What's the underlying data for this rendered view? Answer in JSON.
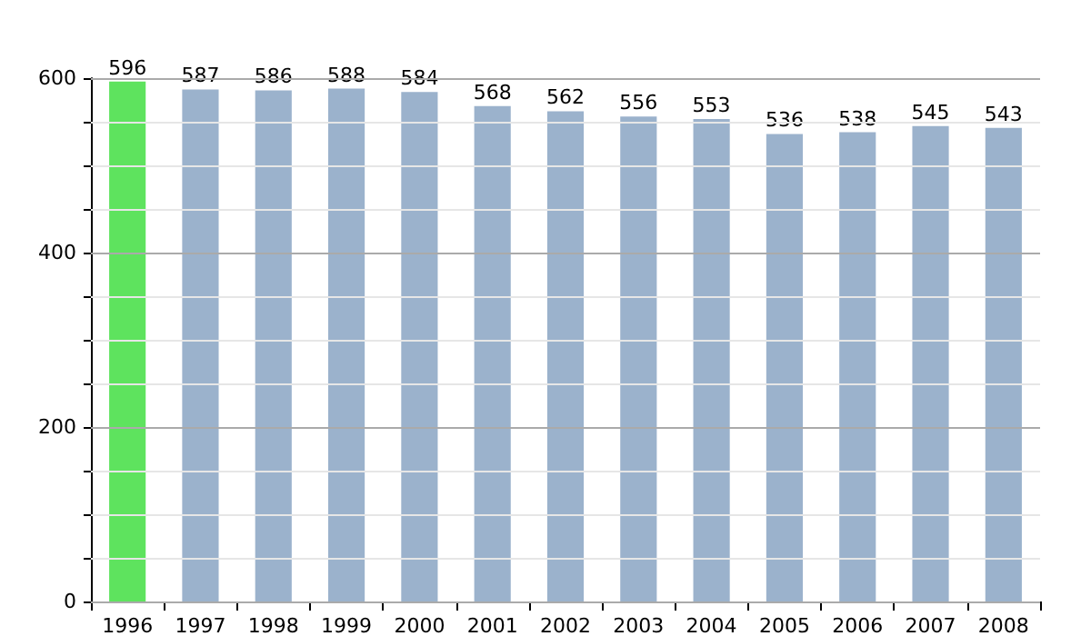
{
  "chart_data": {
    "type": "bar",
    "categories": [
      "1996",
      "1997",
      "1998",
      "1999",
      "2000",
      "2001",
      "2002",
      "2003",
      "2004",
      "2005",
      "2006",
      "2007",
      "2008"
    ],
    "values": [
      596,
      587,
      586,
      588,
      584,
      568,
      562,
      556,
      553,
      536,
      538,
      545,
      543
    ],
    "colors": [
      "#5ee35e",
      "#9bb2cc",
      "#9bb2cc",
      "#9bb2cc",
      "#9bb2cc",
      "#9bb2cc",
      "#9bb2cc",
      "#9bb2cc",
      "#9bb2cc",
      "#9bb2cc",
      "#9bb2cc",
      "#9bb2cc",
      "#9bb2cc"
    ],
    "ylim": [
      0,
      600
    ],
    "yticks": [
      0,
      {
        "value": 50,
        "label": null
      },
      {
        "value": 100,
        "label": null
      },
      {
        "value": 150,
        "label": null
      },
      200,
      {
        "value": 250,
        "label": null
      },
      {
        "value": 300,
        "label": null
      },
      {
        "value": 350,
        "label": null
      },
      400,
      {
        "value": 450,
        "label": null
      },
      {
        "value": 500,
        "label": null
      },
      {
        "value": 550,
        "label": null
      },
      600
    ],
    "grid": true,
    "data_labels": true
  }
}
